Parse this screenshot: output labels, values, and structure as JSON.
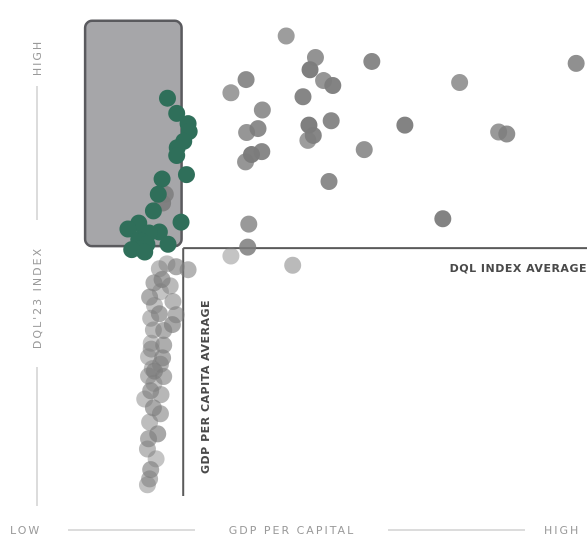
{
  "chart_data": {
    "type": "scatter",
    "title": "",
    "xlabel": "GDP PER CAPITAL",
    "ylabel": "DQL'23 INDEX",
    "x_low_label": "LOW",
    "x_high_label": "HIGH",
    "y_high_label": "HIGH",
    "x_reference_label": "GDP PER CAPITA AVERAGE",
    "y_reference_label": "DQL INDEX AVERAGE",
    "xlim": [
      0,
      100
    ],
    "ylim": [
      0,
      100
    ],
    "x_reference_value": 25.5,
    "y_reference_value": 51.4,
    "highlight_region": {
      "x": [
        7.4,
        25.2
      ],
      "y": [
        51.8,
        97.8
      ]
    },
    "colors": {
      "highlight_region": "#a6a6a9",
      "highlight_border": "#5a5a5e",
      "reference_line": "#5a5a5a",
      "axis_text": "#9a9a9a",
      "reference_text": "#4a4a4a"
    },
    "series": [
      {
        "color": "#2f6f5a",
        "points": [
          [
            22.6,
            82.0
          ],
          [
            24.3,
            78.9
          ],
          [
            26.4,
            76.8
          ],
          [
            26.6,
            75.2
          ],
          [
            25.6,
            73.2
          ],
          [
            24.4,
            71.9
          ],
          [
            24.3,
            70.3
          ],
          [
            26.1,
            66.4
          ],
          [
            21.6,
            65.5
          ],
          [
            20.9,
            62.4
          ],
          [
            20.0,
            59.0
          ],
          [
            25.1,
            56.7
          ],
          [
            17.3,
            56.5
          ],
          [
            15.3,
            55.3
          ],
          [
            21.1,
            54.7
          ],
          [
            19.2,
            54.5
          ],
          [
            17.3,
            53.2
          ],
          [
            17.8,
            52.8
          ],
          [
            18.8,
            52.2
          ],
          [
            22.7,
            52.2
          ],
          [
            17.6,
            51.3
          ],
          [
            16.0,
            51.1
          ],
          [
            18.4,
            50.6
          ]
        ]
      },
      {
        "color": "#7c7c7c",
        "points": [
          [
            44.5,
            94.7
          ],
          [
            49.9,
            90.3
          ],
          [
            60.3,
            89.5
          ],
          [
            48.9,
            87.8
          ],
          [
            51.4,
            85.6
          ],
          [
            37.1,
            85.8
          ],
          [
            53.1,
            84.6
          ],
          [
            76.5,
            85.2
          ],
          [
            98.0,
            89.1
          ],
          [
            47.6,
            82.3
          ],
          [
            34.3,
            83.1
          ],
          [
            40.1,
            79.6
          ],
          [
            52.8,
            77.4
          ],
          [
            48.7,
            76.5
          ],
          [
            37.2,
            75.0
          ],
          [
            39.3,
            75.8
          ],
          [
            66.4,
            76.5
          ],
          [
            83.7,
            75.1
          ],
          [
            85.2,
            74.7
          ],
          [
            49.5,
            74.4
          ],
          [
            48.5,
            73.4
          ],
          [
            58.9,
            71.5
          ],
          [
            40.0,
            71.1
          ],
          [
            38.1,
            70.5
          ],
          [
            37.0,
            69.0
          ],
          [
            52.4,
            65.0
          ],
          [
            73.4,
            57.4
          ],
          [
            37.6,
            56.3
          ],
          [
            37.4,
            51.6
          ],
          [
            45.7,
            47.9
          ],
          [
            34.3,
            49.8
          ],
          [
            22.2,
            62.4
          ],
          [
            21.7,
            60.6
          ],
          [
            22.5,
            48.2
          ],
          [
            24.2,
            47.6
          ],
          [
            26.4,
            47.0
          ],
          [
            21.1,
            47.2
          ],
          [
            21.6,
            45.0
          ],
          [
            20.1,
            44.3
          ],
          [
            23.1,
            43.7
          ],
          [
            21.3,
            42.5
          ],
          [
            19.3,
            41.4
          ],
          [
            23.6,
            40.5
          ],
          [
            20.2,
            39.7
          ],
          [
            21.1,
            38.0
          ],
          [
            24.2,
            37.8
          ],
          [
            19.5,
            37.1
          ],
          [
            23.5,
            35.8
          ],
          [
            21.9,
            34.6
          ],
          [
            20.0,
            34.7
          ],
          [
            19.6,
            32.0
          ],
          [
            21.9,
            31.6
          ],
          [
            19.6,
            30.8
          ],
          [
            19.1,
            29.2
          ],
          [
            21.7,
            29.0
          ],
          [
            21.3,
            27.7
          ],
          [
            19.8,
            26.8
          ],
          [
            20.2,
            26.3
          ],
          [
            21.9,
            25.2
          ],
          [
            19.1,
            25.3
          ],
          [
            20.1,
            23.8
          ],
          [
            19.5,
            22.3
          ],
          [
            21.4,
            21.5
          ],
          [
            18.4,
            20.6
          ],
          [
            20.0,
            18.8
          ],
          [
            21.3,
            17.6
          ],
          [
            19.3,
            15.9
          ],
          [
            20.8,
            13.5
          ],
          [
            19.1,
            12.5
          ],
          [
            18.9,
            10.4
          ],
          [
            20.5,
            8.4
          ],
          [
            19.5,
            6.2
          ],
          [
            19.3,
            4.3
          ],
          [
            18.9,
            3.1
          ]
        ]
      }
    ]
  }
}
